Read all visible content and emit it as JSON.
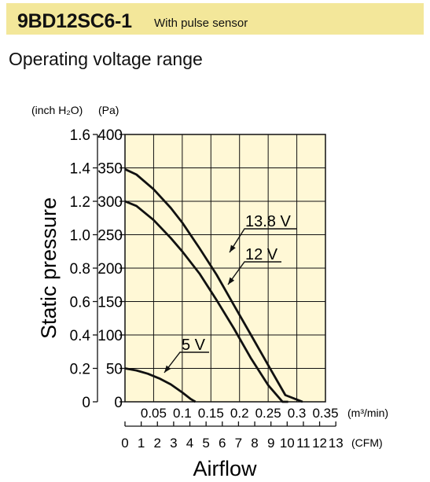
{
  "header": {
    "model": "9BD12SC6-1",
    "subtitle": "With pulse sensor"
  },
  "section_title": "Operating voltage range",
  "chart_data": {
    "type": "line",
    "xlabel": "Airflow",
    "ylabel": "Static pressure",
    "x_unit_primary": "(m³/min)",
    "x_unit_secondary": "(CFM)",
    "y_unit_left": "(inch H₂O)",
    "y_unit_right": "(Pa)",
    "xlim": [
      0,
      0.35
    ],
    "ylim": [
      0,
      400
    ],
    "grid": true,
    "x_ticks_m3min": [
      "0.05",
      "0.1",
      "0.15",
      "0.2",
      "0.25",
      "0.3",
      "0.35"
    ],
    "x_ticks_cfm": [
      "0",
      "1",
      "2",
      "3",
      "4",
      "5",
      "6",
      "7",
      "8",
      "9",
      "10",
      "11",
      "12",
      "13"
    ],
    "y_ticks_pa": [
      "0",
      "50",
      "100",
      "150",
      "200",
      "250",
      "300",
      "350",
      "400"
    ],
    "y_ticks_inch": [
      "0",
      "0.2",
      "0.4",
      "0.6",
      "0.8",
      "1.0",
      "1.2",
      "1.4",
      "1.6"
    ],
    "series": [
      {
        "name": "13.8 V",
        "x": [
          0,
          0.02,
          0.05,
          0.08,
          0.1,
          0.13,
          0.16,
          0.19,
          0.22,
          0.25,
          0.28,
          0.31
        ],
        "y": [
          348,
          340,
          318,
          290,
          268,
          230,
          190,
          145,
          100,
          55,
          10,
          0
        ]
      },
      {
        "name": "12 V",
        "x": [
          0,
          0.02,
          0.05,
          0.08,
          0.1,
          0.13,
          0.16,
          0.19,
          0.22,
          0.25,
          0.275,
          0.285
        ],
        "y": [
          300,
          293,
          272,
          245,
          225,
          192,
          152,
          110,
          65,
          25,
          0,
          0
        ]
      },
      {
        "name": "5 V",
        "x": [
          0,
          0.02,
          0.04,
          0.06,
          0.08,
          0.1,
          0.115,
          0.123
        ],
        "y": [
          50,
          47,
          42,
          35,
          26,
          14,
          4,
          0
        ]
      }
    ]
  }
}
